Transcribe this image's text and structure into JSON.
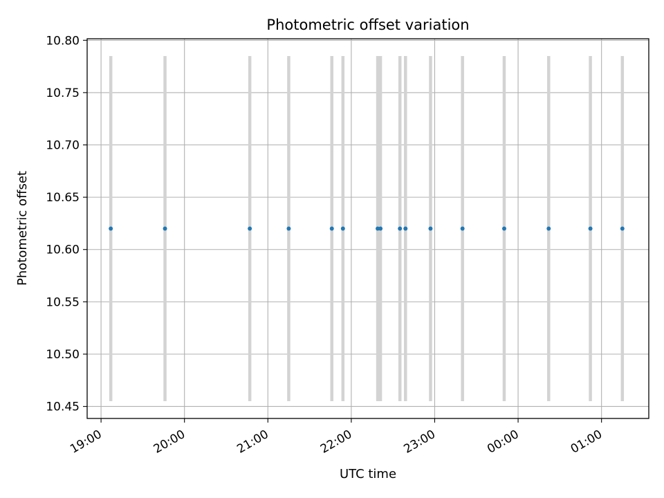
{
  "chart_data": {
    "type": "scatter",
    "title": "Photometric offset variation",
    "xlabel": "UTC time",
    "ylabel": "Photometric offset",
    "grid": true,
    "x_tick_labels": [
      "19:00",
      "20:00",
      "21:00",
      "22:00",
      "23:00",
      "00:00",
      "01:00"
    ],
    "y_tick_labels": [
      "10.45",
      "10.50",
      "10.55",
      "10.60",
      "10.65",
      "10.70",
      "10.75",
      "10.80"
    ],
    "ylim": [
      10.4385,
      10.8015
    ],
    "xlim": [
      "18:50",
      "01:34"
    ],
    "error_band": [
      10.455,
      10.785
    ],
    "colors": {
      "points": "#1f77b4",
      "error_bars": "#d3d3d3",
      "grid": "#b0b0b0"
    },
    "points": [
      {
        "x": "19:07",
        "y": 10.62
      },
      {
        "x": "19:46",
        "y": 10.62
      },
      {
        "x": "20:47",
        "y": 10.62
      },
      {
        "x": "21:15",
        "y": 10.62
      },
      {
        "x": "21:46",
        "y": 10.62
      },
      {
        "x": "21:54",
        "y": 10.62
      },
      {
        "x": "22:19",
        "y": 10.62
      },
      {
        "x": "22:21",
        "y": 10.62
      },
      {
        "x": "22:35",
        "y": 10.62
      },
      {
        "x": "22:39",
        "y": 10.62
      },
      {
        "x": "22:57",
        "y": 10.62
      },
      {
        "x": "23:20",
        "y": 10.62
      },
      {
        "x": "23:50",
        "y": 10.62
      },
      {
        "x": "00:22",
        "y": 10.62
      },
      {
        "x": "00:52",
        "y": 10.62
      },
      {
        "x": "01:15",
        "y": 10.62
      }
    ]
  }
}
